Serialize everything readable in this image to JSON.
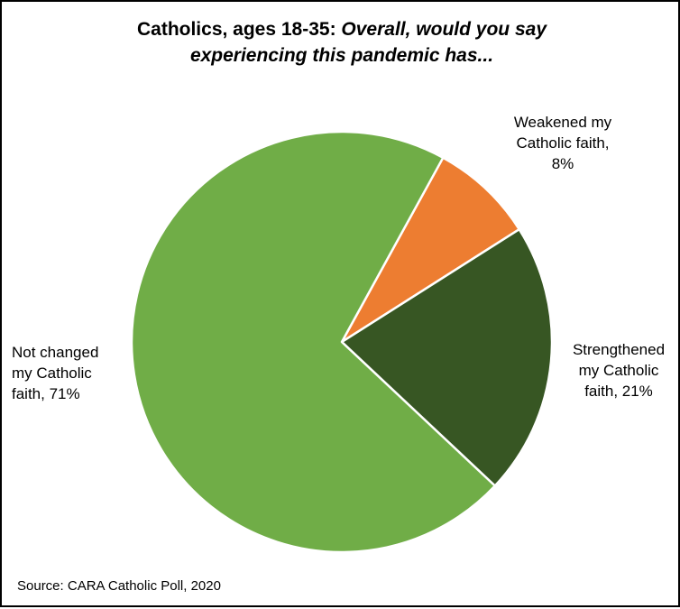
{
  "chart_data": {
    "type": "pie",
    "title_line1_regular": "Catholics, ages 18-35: ",
    "title_line1_italic": "Overall, would you say",
    "title_line2_italic": "experiencing this pandemic has...",
    "slices": [
      {
        "label_lines": [
          "Weakened my",
          "Catholic faith,",
          "8%"
        ],
        "value": 8,
        "color": "#ed7d31"
      },
      {
        "label_lines": [
          "Strengthened",
          "my Catholic",
          "faith, 21%"
        ],
        "value": 21,
        "color": "#375623"
      },
      {
        "label_lines": [
          "Not changed",
          "my Catholic",
          "faith, 71%"
        ],
        "value": 71,
        "color": "#70ad47"
      }
    ],
    "legend": "none",
    "start_angle_deg": 28.8,
    "direction": "clockwise",
    "source": "Source: CARA Catholic Poll, 2020"
  }
}
